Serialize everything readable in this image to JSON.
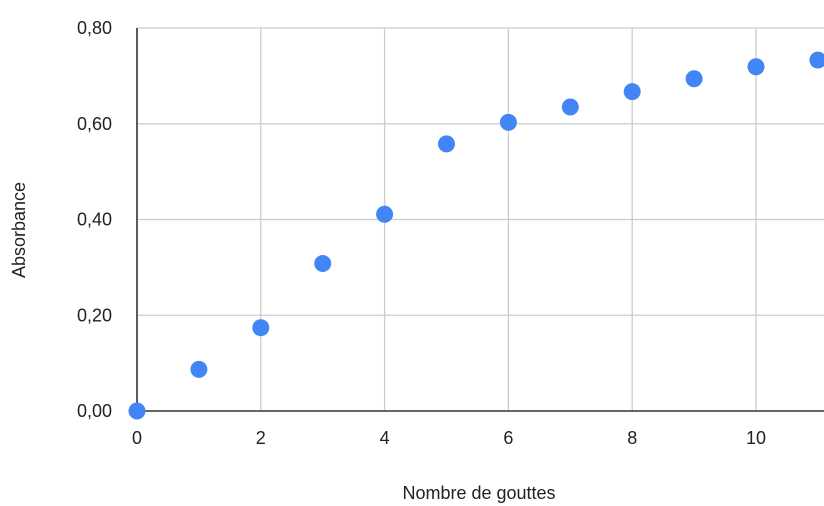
{
  "chart_data": {
    "type": "scatter",
    "title": "",
    "xlabel": "Nombre de gouttes",
    "ylabel": "Absorbance",
    "xlim": [
      0,
      11
    ],
    "ylim": [
      0,
      0.8
    ],
    "x_ticks": [
      0,
      2,
      4,
      6,
      8,
      10
    ],
    "y_ticks": [
      0,
      0.2,
      0.4,
      0.6,
      0.8
    ],
    "x_tick_labels": [
      "0",
      "2",
      "4",
      "6",
      "8",
      "10"
    ],
    "y_tick_labels": [
      "0,00",
      "0,20",
      "0,40",
      "0,60",
      "0,80"
    ],
    "grid": true,
    "legend": "none",
    "colors": {
      "point": "#4285f4"
    },
    "series": [
      {
        "x": [
          0,
          1,
          2,
          3,
          4,
          5,
          6,
          7,
          8,
          9,
          10,
          11
        ],
        "y": [
          0.0,
          0.087,
          0.174,
          0.308,
          0.411,
          0.558,
          0.603,
          0.635,
          0.667,
          0.694,
          0.719,
          0.733
        ]
      }
    ]
  }
}
